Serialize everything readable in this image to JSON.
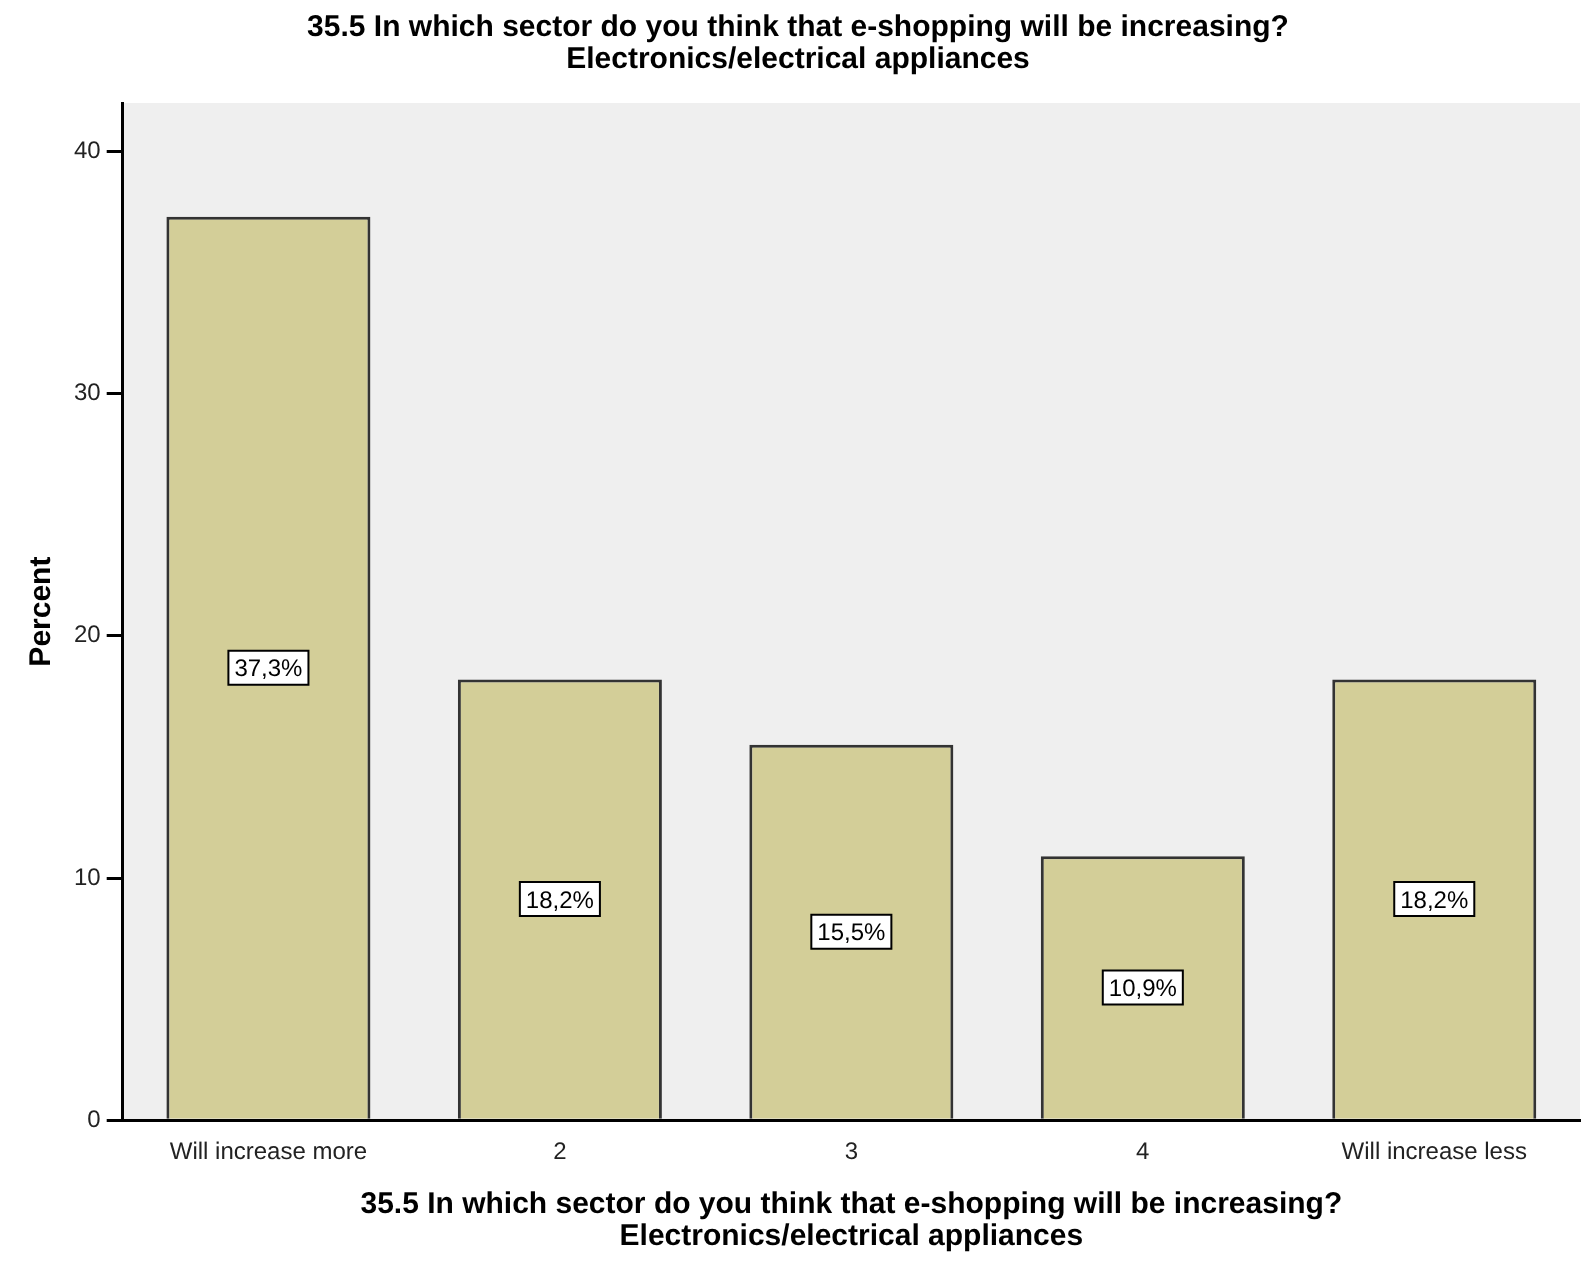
{
  "chart_data": {
    "type": "bar",
    "title": "35.5 In which sector do you think that e-shopping will be increasing?\nElectronics/electrical appliances",
    "xlabel": "35.5 In which sector do you think that e-shopping will be increasing?\nElectronics/electrical appliances",
    "ylabel": "Percent",
    "categories": [
      "Will increase more",
      "2",
      "3",
      "4",
      "Will increase less"
    ],
    "values": [
      37.3,
      18.2,
      15.5,
      10.9,
      18.2
    ],
    "value_labels": [
      "37,3%",
      "18,2%",
      "15,5%",
      "10,9%",
      "18,2%"
    ],
    "color": "#d3ce98",
    "ylim": [
      0,
      42
    ],
    "yticks": [
      0,
      10,
      20,
      30,
      40
    ],
    "legend": false
  }
}
